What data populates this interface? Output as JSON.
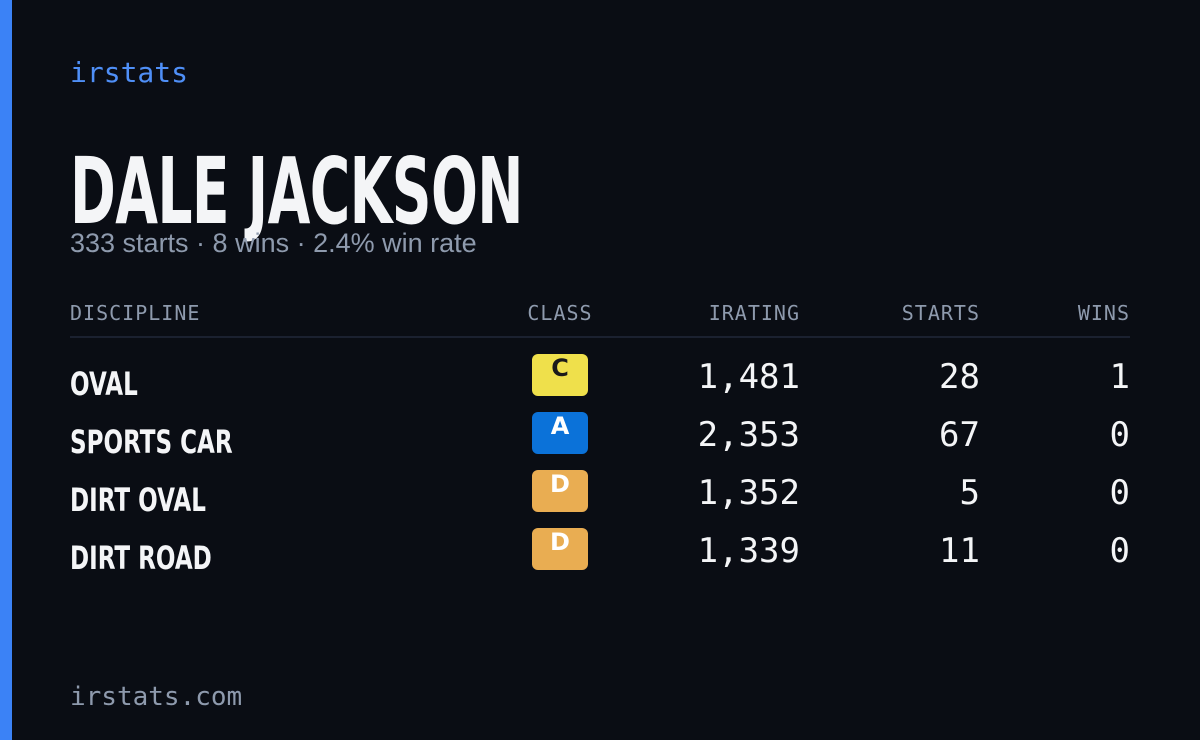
{
  "brand": "irstats",
  "driver": {
    "name": "DALE JACKSON",
    "summary": "333 starts · 8 wins · 2.4% win rate"
  },
  "table": {
    "headers": [
      "DISCIPLINE",
      "CLASS",
      "IRATING",
      "STARTS",
      "WINS"
    ],
    "rows": [
      {
        "discipline": "OVAL",
        "class": "C",
        "class_color": "#efe04b",
        "class_text_color": "#1a1a1a",
        "irating": "1,481",
        "starts": "28",
        "wins": "1"
      },
      {
        "discipline": "SPORTS CAR",
        "class": "A",
        "class_color": "#0b72d9",
        "class_text_color": "#ffffff",
        "irating": "2,353",
        "starts": "67",
        "wins": "0"
      },
      {
        "discipline": "DIRT OVAL",
        "class": "D",
        "class_color": "#e9ad52",
        "class_text_color": "#ffffff",
        "irating": "1,352",
        "starts": "5",
        "wins": "0"
      },
      {
        "discipline": "DIRT ROAD",
        "class": "D",
        "class_color": "#e9ad52",
        "class_text_color": "#ffffff",
        "irating": "1,339",
        "starts": "11",
        "wins": "0"
      }
    ]
  },
  "footer": "irstats.com"
}
